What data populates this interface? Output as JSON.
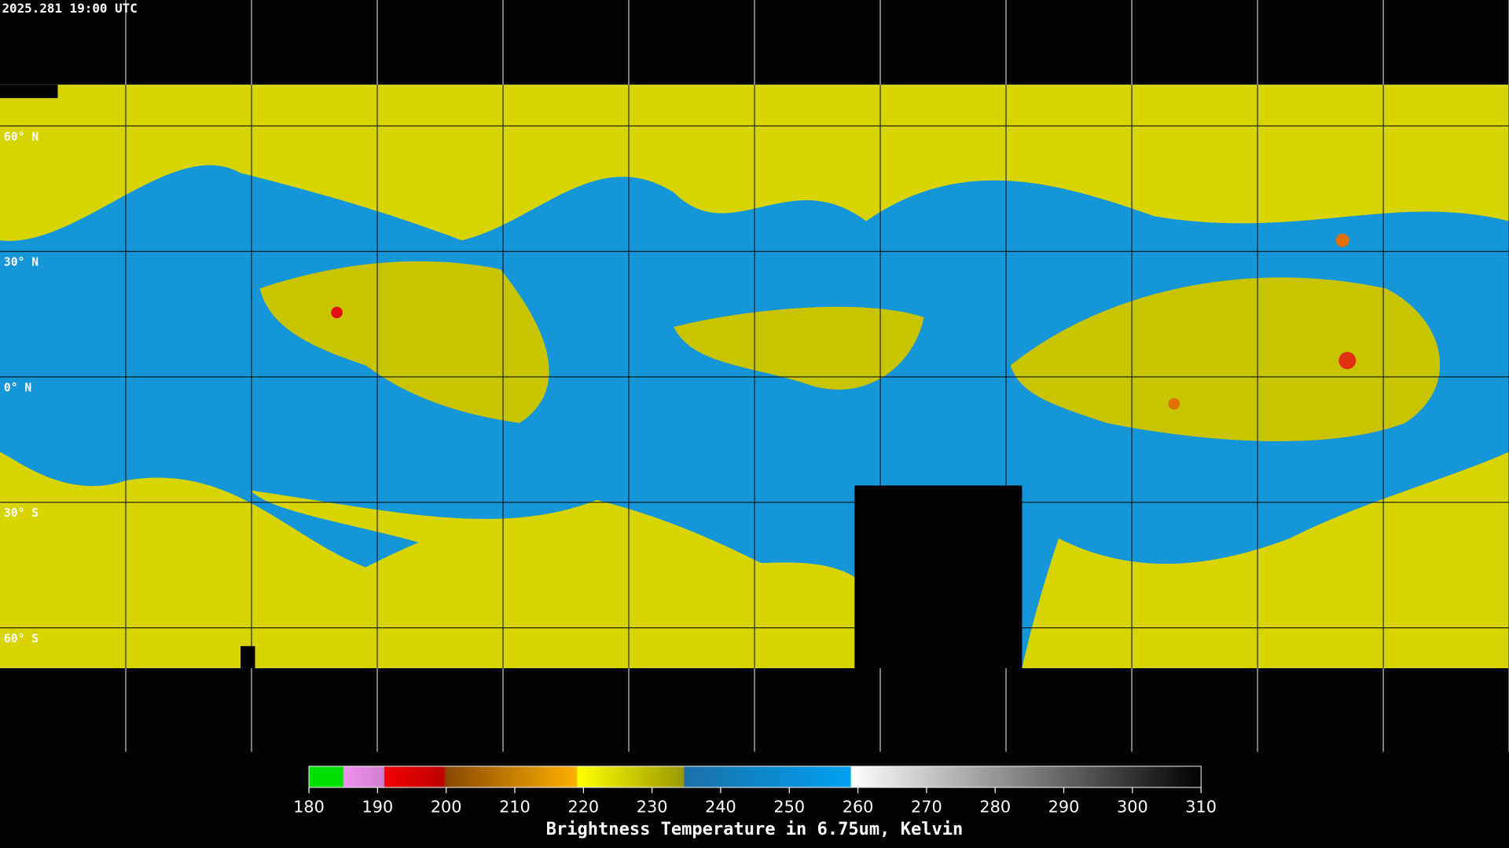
{
  "timestamp": "2025.281 19:00 UTC",
  "latitude_labels": [
    "60° N",
    "30° N",
    "0° N",
    "30° S",
    "60° S"
  ],
  "colorbar": {
    "title": "Brightness Temperature in 6.75um, Kelvin",
    "range": [
      180,
      310
    ],
    "ticks": [
      180,
      190,
      200,
      210,
      220,
      230,
      240,
      250,
      260,
      270,
      280,
      290,
      300,
      310
    ]
  }
}
